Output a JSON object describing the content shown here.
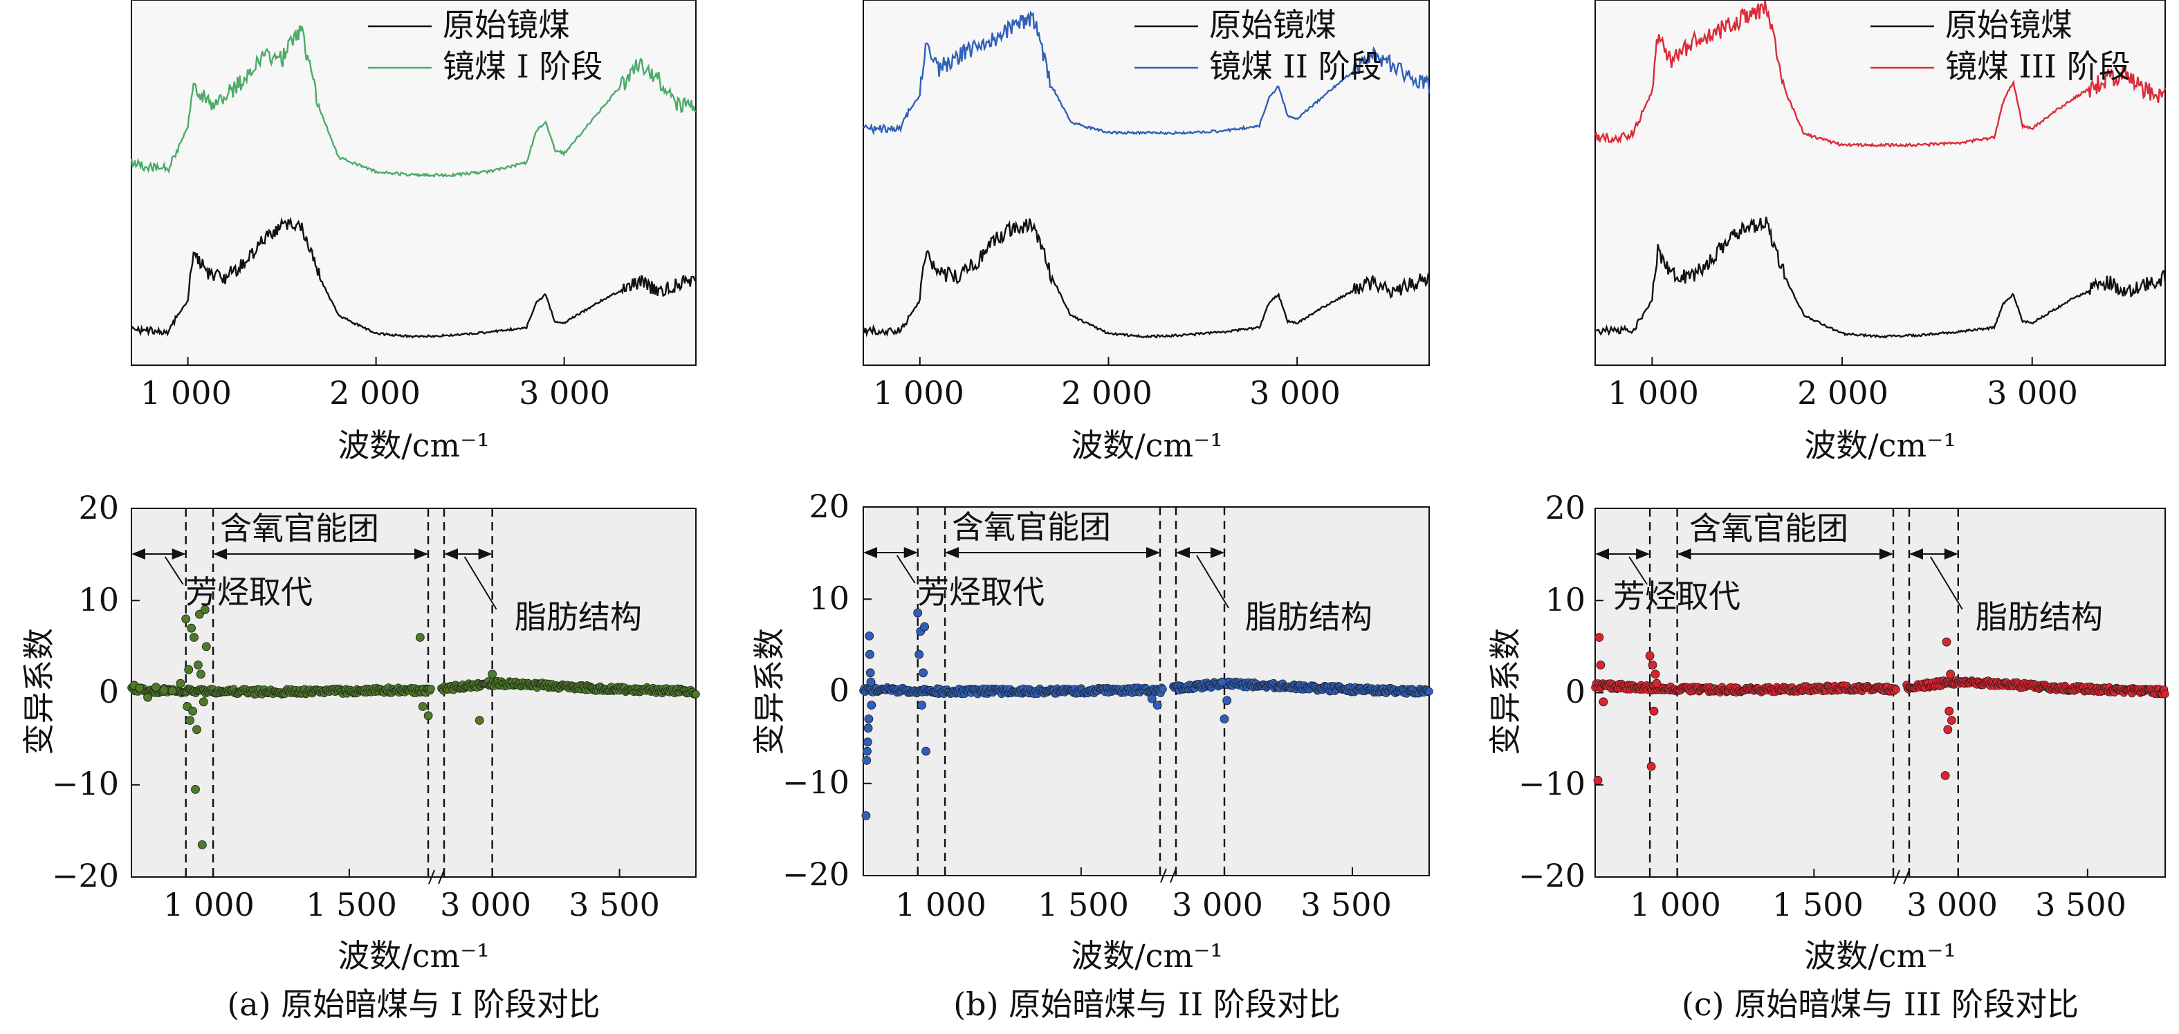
{
  "panels": [
    {
      "id": "a",
      "caption": "(a) 原始暗煤与 I 阶段对比",
      "spectra": {
        "xlabel": "波数/cm⁻¹",
        "xticks": [
          "1 000",
          "2 000",
          "3 000"
        ],
        "legend": [
          {
            "label": "原始镜煤",
            "color": "#111111"
          },
          {
            "label": "镜煤 I 阶段",
            "color": "#4daa6a"
          }
        ]
      },
      "coef": {
        "ylabel": "变异系数",
        "yticks": [
          "20",
          "10",
          "0",
          "−10",
          "−20"
        ],
        "xticks": [
          "1 000",
          "1 500",
          "3 000",
          "3 500"
        ],
        "xlabel": "波数/cm⁻¹",
        "regions": [
          "芳烃取代",
          "含氧官能团",
          "脂肪结构"
        ],
        "point_color": "#4e7a2a"
      }
    },
    {
      "id": "b",
      "caption": "(b) 原始暗煤与 II 阶段对比",
      "spectra": {
        "xlabel": "波数/cm⁻¹",
        "xticks": [
          "1 000",
          "2 000",
          "3 000"
        ],
        "legend": [
          {
            "label": "原始镜煤",
            "color": "#111111"
          },
          {
            "label": "镜煤 II 阶段",
            "color": "#3060b8"
          }
        ]
      },
      "coef": {
        "ylabel": "变异系数",
        "yticks": [
          "20",
          "10",
          "0",
          "−10",
          "−20"
        ],
        "xticks": [
          "1 000",
          "1 500",
          "3 000",
          "3 500"
        ],
        "xlabel": "波数/cm⁻¹",
        "regions": [
          "芳烃取代",
          "含氧官能团",
          "脂肪结构"
        ],
        "point_color": "#2f5fb8"
      }
    },
    {
      "id": "c",
      "caption": "(c) 原始暗煤与 III 阶段对比",
      "spectra": {
        "xlabel": "波数/cm⁻¹",
        "xticks": [
          "1 000",
          "2 000",
          "3 000"
        ],
        "legend": [
          {
            "label": "原始镜煤",
            "color": "#111111"
          },
          {
            "label": "镜煤 III 阶段",
            "color": "#dc2a38"
          }
        ]
      },
      "coef": {
        "ylabel": "变异系数",
        "yticks": [
          "20",
          "10",
          "0",
          "−10",
          "−20"
        ],
        "xticks": [
          "1 000",
          "1 500",
          "3 000",
          "3 500"
        ],
        "xlabel": "波数/cm⁻¹",
        "regions": [
          "芳烃取代",
          "含氧官能团",
          "脂肪结构"
        ],
        "point_color": "#d9252f"
      }
    }
  ],
  "chart_data": [
    {
      "type": "line",
      "panel": "a-top",
      "xlim": [
        700,
        3700
      ],
      "xlabel": "波数/cm⁻¹",
      "series": [
        {
          "name": "镜煤 I 阶段",
          "x": [
            700,
            800,
            900,
            1000,
            1030,
            1100,
            1200,
            1300,
            1400,
            1500,
            1600,
            1700,
            1800,
            2000,
            2200,
            2400,
            2600,
            2800,
            2850,
            2900,
            2950,
            3000,
            3200,
            3400,
            3500,
            3600,
            3700
          ],
          "y": [
            0.25,
            0.22,
            0.22,
            0.45,
            0.7,
            0.58,
            0.62,
            0.72,
            0.85,
            0.82,
            1.0,
            0.55,
            0.28,
            0.2,
            0.18,
            0.18,
            0.2,
            0.25,
            0.42,
            0.48,
            0.32,
            0.3,
            0.55,
            0.8,
            0.72,
            0.58,
            0.55
          ]
        },
        {
          "name": "原始镜煤",
          "x": [
            700,
            800,
            900,
            1000,
            1030,
            1100,
            1200,
            1300,
            1400,
            1500,
            1600,
            1700,
            1800,
            2000,
            2200,
            2400,
            2600,
            2800,
            2850,
            2900,
            2950,
            3000,
            3200,
            3400,
            3500,
            3600,
            3700
          ],
          "y": [
            0.1,
            0.1,
            0.1,
            0.3,
            0.62,
            0.48,
            0.45,
            0.55,
            0.7,
            0.78,
            0.8,
            0.45,
            0.2,
            0.08,
            0.06,
            0.07,
            0.09,
            0.12,
            0.28,
            0.34,
            0.16,
            0.15,
            0.3,
            0.42,
            0.36,
            0.4,
            0.45
          ]
        }
      ]
    },
    {
      "type": "line",
      "panel": "b-top",
      "xlim": [
        700,
        3700
      ],
      "xlabel": "波数/cm⁻¹",
      "series": [
        {
          "name": "镜煤 II 阶段",
          "x": [
            700,
            800,
            900,
            1000,
            1030,
            1100,
            1200,
            1300,
            1400,
            1500,
            1600,
            1700,
            1800,
            2000,
            2200,
            2400,
            2600,
            2800,
            2850,
            2900,
            2950,
            3000,
            3200,
            3400,
            3500,
            3600,
            3700
          ],
          "y": [
            0.3,
            0.3,
            0.32,
            0.5,
            0.8,
            0.65,
            0.72,
            0.78,
            0.82,
            0.9,
            0.95,
            0.55,
            0.34,
            0.28,
            0.28,
            0.28,
            0.29,
            0.32,
            0.48,
            0.55,
            0.38,
            0.36,
            0.55,
            0.72,
            0.68,
            0.6,
            0.55
          ]
        },
        {
          "name": "原始镜煤",
          "x": [
            700,
            800,
            900,
            1000,
            1030,
            1100,
            1200,
            1300,
            1400,
            1500,
            1600,
            1700,
            1800,
            2000,
            2200,
            2400,
            2600,
            2800,
            2850,
            2900,
            2950,
            3000,
            3200,
            3400,
            3500,
            3600,
            3700
          ],
          "y": [
            0.1,
            0.1,
            0.1,
            0.3,
            0.62,
            0.48,
            0.45,
            0.55,
            0.7,
            0.78,
            0.8,
            0.45,
            0.2,
            0.08,
            0.06,
            0.07,
            0.09,
            0.12,
            0.28,
            0.34,
            0.16,
            0.15,
            0.3,
            0.42,
            0.36,
            0.4,
            0.45
          ]
        }
      ]
    },
    {
      "type": "line",
      "panel": "c-top",
      "xlim": [
        700,
        3700
      ],
      "xlabel": "波数/cm⁻¹",
      "series": [
        {
          "name": "镜煤 III 阶段",
          "x": [
            700,
            800,
            900,
            1000,
            1030,
            1100,
            1200,
            1300,
            1400,
            1500,
            1600,
            1700,
            1800,
            2000,
            2200,
            2400,
            2600,
            2800,
            2850,
            2900,
            2950,
            3000,
            3200,
            3400,
            3500,
            3600,
            3700
          ],
          "y": [
            0.3,
            0.3,
            0.32,
            0.55,
            0.85,
            0.7,
            0.8,
            0.85,
            0.9,
            0.95,
            1.0,
            0.55,
            0.32,
            0.26,
            0.26,
            0.26,
            0.27,
            0.3,
            0.5,
            0.6,
            0.36,
            0.35,
            0.5,
            0.62,
            0.64,
            0.55,
            0.52
          ]
        },
        {
          "name": "原始镜煤",
          "x": [
            700,
            800,
            900,
            1000,
            1030,
            1100,
            1200,
            1300,
            1400,
            1500,
            1600,
            1700,
            1800,
            2000,
            2200,
            2400,
            2600,
            2800,
            2850,
            2900,
            2950,
            3000,
            3200,
            3400,
            3500,
            3600,
            3700
          ],
          "y": [
            0.1,
            0.1,
            0.1,
            0.3,
            0.62,
            0.48,
            0.45,
            0.55,
            0.7,
            0.78,
            0.8,
            0.45,
            0.2,
            0.08,
            0.06,
            0.07,
            0.09,
            0.12,
            0.28,
            0.34,
            0.16,
            0.15,
            0.3,
            0.42,
            0.36,
            0.4,
            0.45
          ]
        }
      ]
    },
    {
      "type": "scatter",
      "panel": "a-bottom",
      "ylabel": "变异系数",
      "xlabel": "波数/cm⁻¹",
      "ylim": [
        -20,
        20
      ],
      "x_segments": [
        {
          "range": [
            700,
            1800
          ]
        },
        {
          "range": [
            2800,
            3800
          ]
        }
      ],
      "boundaries": [
        900,
        1000,
        1800,
        2800,
        3000
      ],
      "points": {
        "x": [
          710,
          730,
          760,
          790,
          820,
          850,
          880,
          900,
          905,
          910,
          915,
          920,
          925,
          930,
          935,
          940,
          945,
          950,
          955,
          960,
          965,
          970,
          975,
          1760,
          1770,
          1790,
          2950,
          3000
        ],
        "y": [
          0.8,
          0.5,
          -0.5,
          0.6,
          0.3,
          0.2,
          1.0,
          8.0,
          -1.5,
          2.5,
          -3.0,
          7.0,
          -2.0,
          6.0,
          -10.5,
          -4.0,
          3.0,
          8.5,
          2.0,
          -16.5,
          -1.0,
          9.0,
          5.0,
          6.0,
          -1.5,
          -2.5,
          -3.0,
          2.0
        ]
      },
      "baseline": {
        "x": [
          700,
          1000,
          1200,
          1400,
          1600,
          1800,
          2800,
          3000,
          3200,
          3400,
          3600,
          3800
        ],
        "y": [
          0.3,
          0.1,
          0.1,
          0.1,
          0.3,
          0.2,
          0.4,
          1.0,
          0.8,
          0.5,
          0.3,
          0.1
        ]
      },
      "annotations": [
        "芳烃取代",
        "含氧官能团",
        "脂肪结构"
      ]
    },
    {
      "type": "scatter",
      "panel": "b-bottom",
      "ylabel": "变异系数",
      "xlabel": "波数/cm⁻¹",
      "ylim": [
        -20,
        20
      ],
      "x_segments": [
        {
          "range": [
            700,
            1800
          ]
        },
        {
          "range": [
            2800,
            3800
          ]
        }
      ],
      "boundaries": [
        900,
        1000,
        1800,
        2800,
        3000
      ],
      "points": {
        "x": [
          710,
          712,
          714,
          716,
          718,
          720,
          722,
          724,
          726,
          728,
          730,
          900,
          905,
          910,
          915,
          920,
          925,
          930,
          1760,
          1780,
          2990,
          3000,
          3010
        ],
        "y": [
          -13.5,
          -7.5,
          -6.5,
          -5.5,
          -4.0,
          -3.0,
          6.0,
          4.0,
          2.0,
          1.0,
          -1.5,
          8.5,
          4.0,
          6.5,
          -1.5,
          2.0,
          7.0,
          -6.5,
          -0.8,
          -1.5,
          1.0,
          -3.0,
          -1.0
        ]
      },
      "baseline": {
        "x": [
          700,
          1000,
          1200,
          1400,
          1600,
          1800,
          2800,
          3000,
          3200,
          3400,
          3600,
          3800
        ],
        "y": [
          0.2,
          0.0,
          0.0,
          0.0,
          0.1,
          0.1,
          0.3,
          0.8,
          0.6,
          0.3,
          0.1,
          0.0
        ]
      },
      "annotations": [
        "芳烃取代",
        "含氧官能团",
        "脂肪结构"
      ]
    },
    {
      "type": "scatter",
      "panel": "c-bottom",
      "ylabel": "变异系数",
      "xlabel": "波数/cm⁻¹",
      "ylim": [
        -20,
        20
      ],
      "x_segments": [
        {
          "range": [
            700,
            1800
          ]
        },
        {
          "range": [
            2800,
            3800
          ]
        }
      ],
      "boundaries": [
        900,
        1000,
        1800,
        2800,
        3000
      ],
      "points": {
        "x": [
          710,
          715,
          720,
          730,
          900,
          905,
          910,
          915,
          920,
          925,
          2950,
          2955,
          2960,
          2965,
          2970,
          2975
        ],
        "y": [
          -9.5,
          6.0,
          3.0,
          -1.0,
          4.0,
          -8.0,
          3.0,
          -2.0,
          2.0,
          1.0,
          -9.0,
          5.5,
          -4.0,
          -2.0,
          2.0,
          -3.0
        ]
      },
      "baseline": {
        "x": [
          700,
          1000,
          1200,
          1400,
          1600,
          1800,
          2800,
          3000,
          3200,
          3400,
          3600,
          3800
        ],
        "y": [
          0.8,
          0.4,
          0.3,
          0.4,
          0.5,
          0.4,
          0.6,
          1.2,
          0.9,
          0.5,
          0.3,
          0.1
        ]
      },
      "annotations": [
        "芳烃取代",
        "含氧官能团",
        "脂肪结构"
      ]
    }
  ]
}
